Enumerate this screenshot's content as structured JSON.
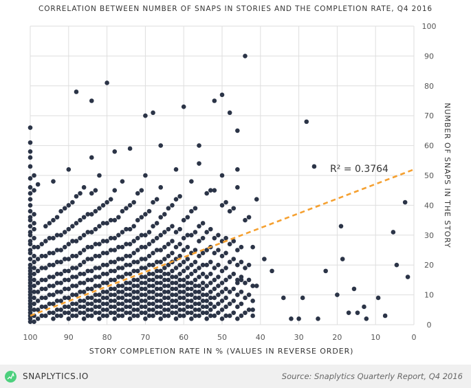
{
  "chart_data": {
    "type": "scatter",
    "title": "CORRELATION BETWEEN NUMBER OF SNAPS IN STORIES AND THE COMPLETION RATE, Q4 2016",
    "xlabel": "STORY COMPLETION RATE IN % (VALUES IN REVERSE ORDER)",
    "ylabel": "NUMBER OF SNAPS IN THE STORY",
    "xlim": [
      100,
      0
    ],
    "ylim": [
      0,
      100
    ],
    "x_reversed": true,
    "y_axis_side": "right",
    "grid": true,
    "xticks": [
      100,
      90,
      80,
      70,
      60,
      50,
      40,
      30,
      20,
      10,
      0
    ],
    "yticks": [
      0,
      10,
      20,
      30,
      40,
      50,
      60,
      70,
      80,
      90,
      100
    ],
    "point_color": "#2b3447",
    "trend_color": "#f5a030",
    "trendline": {
      "x": [
        100,
        0
      ],
      "y": [
        3,
        52
      ],
      "label": "R² = 0.3764"
    },
    "columns": [
      {
        "x": 100,
        "y": [
          1,
          2,
          3,
          4,
          5,
          6,
          7,
          8,
          9,
          10,
          11,
          12,
          13,
          14,
          15,
          16,
          17,
          18,
          19,
          20,
          22,
          24,
          25,
          27,
          28,
          30,
          31,
          33,
          35,
          36,
          38,
          40,
          42,
          44,
          46,
          49,
          53,
          56,
          58,
          61,
          66
        ]
      },
      {
        "x": 99,
        "y": [
          1,
          3,
          5,
          7,
          9,
          11,
          13,
          15,
          17,
          19,
          21,
          23,
          26,
          29,
          32,
          34,
          37,
          45,
          50
        ]
      },
      {
        "x": 98,
        "y": [
          2,
          5,
          8,
          11,
          14,
          18,
          22,
          26,
          47
        ]
      },
      {
        "x": 96,
        "y": [
          3,
          6,
          9,
          12,
          15,
          19,
          23,
          28,
          33
        ]
      },
      {
        "x": 94,
        "y": [
          2,
          4,
          7,
          10,
          13,
          16,
          20,
          24,
          29,
          35,
          48
        ]
      },
      {
        "x": 92,
        "y": [
          3,
          5,
          8,
          11,
          14,
          17,
          21,
          25,
          30,
          38
        ]
      },
      {
        "x": 90,
        "y": [
          2,
          4,
          6,
          9,
          12,
          15,
          18,
          22,
          27,
          32,
          40,
          52
        ]
      },
      {
        "x": 88,
        "y": [
          3,
          5,
          7,
          10,
          13,
          16,
          19,
          23,
          28,
          34,
          43,
          78
        ]
      },
      {
        "x": 86,
        "y": [
          2,
          4,
          6,
          8,
          11,
          14,
          17,
          21,
          25,
          30,
          36,
          46
        ]
      },
      {
        "x": 84,
        "y": [
          3,
          5,
          7,
          9,
          12,
          15,
          18,
          22,
          26,
          31,
          37,
          44,
          56,
          75
        ]
      },
      {
        "x": 82,
        "y": [
          2,
          4,
          6,
          8,
          10,
          13,
          16,
          19,
          23,
          27,
          33,
          39,
          50
        ]
      },
      {
        "x": 80,
        "y": [
          3,
          5,
          7,
          9,
          11,
          14,
          17,
          20,
          24,
          28,
          34,
          41,
          81
        ]
      },
      {
        "x": 78,
        "y": [
          2,
          4,
          6,
          8,
          10,
          12,
          15,
          18,
          21,
          25,
          29,
          35,
          45,
          58
        ]
      },
      {
        "x": 76,
        "y": [
          3,
          5,
          7,
          9,
          11,
          13,
          16,
          19,
          22,
          26,
          31,
          38,
          48
        ]
      },
      {
        "x": 74,
        "y": [
          2,
          4,
          6,
          8,
          10,
          12,
          14,
          17,
          20,
          23,
          27,
          32,
          40,
          59
        ]
      },
      {
        "x": 72,
        "y": [
          3,
          5,
          7,
          9,
          11,
          13,
          15,
          18,
          21,
          25,
          29,
          35,
          44
        ]
      },
      {
        "x": 70,
        "y": [
          2,
          4,
          6,
          8,
          10,
          12,
          14,
          16,
          19,
          22,
          26,
          30,
          37,
          50,
          70
        ]
      },
      {
        "x": 68,
        "y": [
          3,
          5,
          7,
          9,
          11,
          13,
          15,
          17,
          20,
          24,
          28,
          33,
          41,
          71
        ]
      },
      {
        "x": 66,
        "y": [
          2,
          4,
          6,
          8,
          10,
          12,
          14,
          16,
          18,
          21,
          25,
          30,
          36,
          46,
          60
        ]
      },
      {
        "x": 64,
        "y": [
          3,
          5,
          7,
          9,
          11,
          13,
          15,
          17,
          20,
          23,
          27,
          32,
          39
        ]
      },
      {
        "x": 62,
        "y": [
          2,
          4,
          6,
          8,
          10,
          12,
          14,
          16,
          19,
          22,
          26,
          31,
          42,
          52
        ]
      },
      {
        "x": 60,
        "y": [
          3,
          5,
          7,
          9,
          11,
          13,
          15,
          18,
          21,
          25,
          29,
          35,
          73
        ]
      },
      {
        "x": 58,
        "y": [
          2,
          4,
          6,
          8,
          10,
          12,
          14,
          17,
          20,
          24,
          30,
          38,
          48
        ]
      },
      {
        "x": 56,
        "y": [
          3,
          5,
          7,
          9,
          11,
          13,
          16,
          19,
          23,
          28,
          33,
          54,
          60
        ]
      },
      {
        "x": 54,
        "y": [
          2,
          4,
          6,
          8,
          10,
          13,
          16,
          20,
          25,
          31,
          44
        ]
      },
      {
        "x": 52,
        "y": [
          3,
          6,
          9,
          12,
          15,
          19,
          24,
          29,
          45,
          75
        ]
      },
      {
        "x": 50,
        "y": [
          2,
          5,
          8,
          11,
          14,
          18,
          23,
          28,
          40,
          50,
          77
        ]
      },
      {
        "x": 48,
        "y": [
          3,
          7,
          11,
          16,
          21,
          27,
          38,
          71
        ]
      },
      {
        "x": 46,
        "y": [
          2,
          6,
          10,
          14,
          15,
          20,
          25,
          46,
          52,
          65
        ]
      },
      {
        "x": 44,
        "y": [
          4,
          9,
          14,
          19,
          35,
          90
        ]
      },
      {
        "x": 42,
        "y": [
          3,
          5,
          8,
          13,
          26
        ]
      },
      {
        "x": 41,
        "y": [
          13,
          42
        ]
      },
      {
        "x": 39,
        "y": [
          22
        ]
      },
      {
        "x": 37,
        "y": [
          18
        ]
      },
      {
        "x": 34,
        "y": [
          9
        ]
      },
      {
        "x": 32,
        "y": [
          2
        ]
      },
      {
        "x": 30,
        "y": [
          2
        ]
      },
      {
        "x": 29,
        "y": [
          9
        ]
      },
      {
        "x": 28,
        "y": [
          68
        ]
      },
      {
        "x": 26,
        "y": [
          53
        ]
      },
      {
        "x": 25,
        "y": [
          2
        ]
      },
      {
        "x": 23,
        "y": [
          18
        ]
      },
      {
        "x": 20,
        "y": [
          10
        ]
      },
      {
        "x": 19,
        "y": [
          33
        ]
      },
      {
        "x": 18.6,
        "y": [
          22
        ]
      },
      {
        "x": 17,
        "y": [
          4
        ]
      },
      {
        "x": 15.6,
        "y": [
          12
        ]
      },
      {
        "x": 14.7,
        "y": [
          4
        ]
      },
      {
        "x": 13,
        "y": [
          6
        ]
      },
      {
        "x": 12.4,
        "y": [
          2
        ]
      },
      {
        "x": 9.3,
        "y": [
          9
        ]
      },
      {
        "x": 7.5,
        "y": [
          3
        ]
      },
      {
        "x": 5.4,
        "y": [
          31
        ]
      },
      {
        "x": 4.5,
        "y": [
          20
        ]
      },
      {
        "x": 2.3,
        "y": [
          41
        ]
      },
      {
        "x": 1.6,
        "y": [
          16
        ]
      }
    ]
  },
  "footer": {
    "brand": "SNAPLYTICS.IO",
    "source": "Source: Snaplytics Quarterly Report, Q4 2016",
    "logo_icon": "pulse-icon"
  }
}
